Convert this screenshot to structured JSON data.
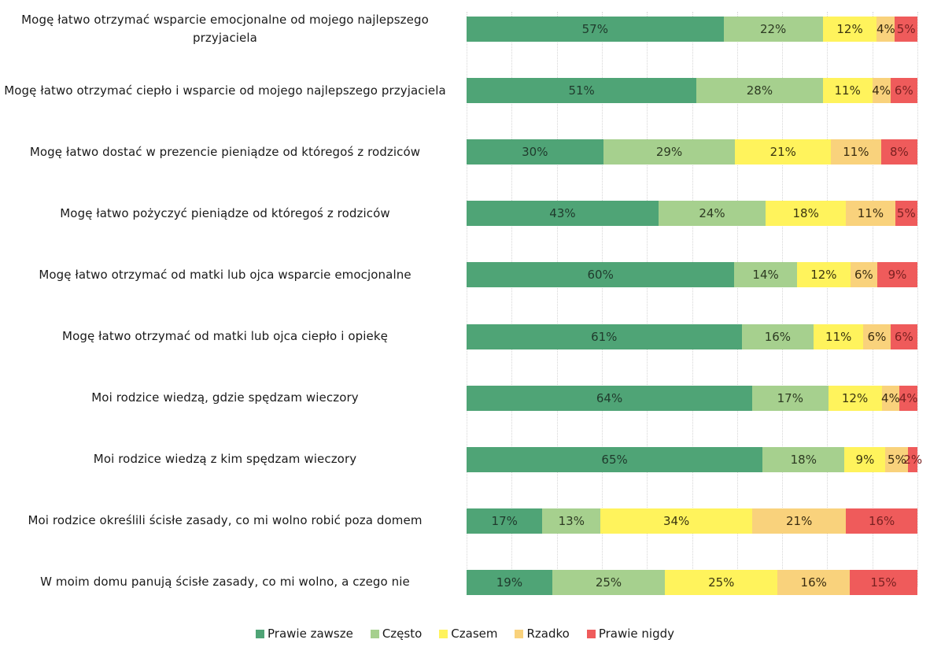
{
  "chart_data": {
    "type": "bar",
    "orientation": "horizontal",
    "stacked": "100%",
    "categories": [
      "Mogę łatwo otrzymać wsparcie emocjonalne od mojego najlepszego przyjaciela",
      "Mogę łatwo otrzymać ciepło i wsparcie od mojego najlepszego przyjaciela",
      "Mogę łatwo dostać w prezencie pieniądze od któregoś z rodziców",
      "Mogę łatwo pożyczyć pieniądze od któregoś z rodziców",
      "Mogę łatwo otrzymać od matki lub ojca wsparcie emocjonalne",
      "Mogę łatwo otrzymać od matki lub ojca ciepło i opiekę",
      "Moi rodzice wiedzą, gdzie spędzam wieczory",
      "Moi rodzice wiedzą z kim spędzam wieczory",
      "Moi rodzice określili ścisłe zasady, co mi wolno robić poza domem",
      "W moim domu panują ścisłe zasady, co mi wolno, a czego nie"
    ],
    "series": [
      {
        "name": "Prawie zawsze",
        "color": "#4fa476",
        "label_color": "#1f3a2c",
        "values": [
          57,
          51,
          30,
          43,
          60,
          61,
          64,
          65,
          17,
          19
        ]
      },
      {
        "name": "Często",
        "color": "#a6d08e",
        "label_color": "#2d3a22",
        "values": [
          22,
          28,
          29,
          24,
          14,
          16,
          17,
          18,
          13,
          25
        ]
      },
      {
        "name": "Czasem",
        "color": "#fff35c",
        "label_color": "#3a3410",
        "values": [
          12,
          11,
          21,
          18,
          12,
          11,
          12,
          9,
          34,
          25
        ]
      },
      {
        "name": "Rzadko",
        "color": "#f9d27c",
        "label_color": "#3a2c10",
        "values": [
          4,
          4,
          11,
          11,
          6,
          6,
          4,
          5,
          21,
          16
        ]
      },
      {
        "name": "Prawie nigdy",
        "color": "#ef5b5b",
        "label_color": "#7a2121",
        "values": [
          5,
          6,
          8,
          5,
          9,
          6,
          4,
          2,
          16,
          15
        ]
      }
    ],
    "value_suffix": "%",
    "xlim": [
      0,
      100
    ],
    "grid": true,
    "legend_position": "bottom"
  }
}
